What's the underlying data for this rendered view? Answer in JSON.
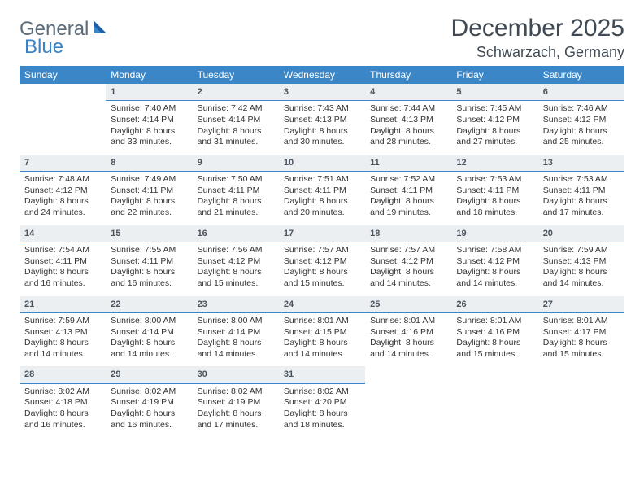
{
  "logo": {
    "text1": "General",
    "text2": "Blue"
  },
  "title": "December 2025",
  "location": "Schwarzach, Germany",
  "colors": {
    "header_bg": "#3b86c6",
    "header_text": "#ffffff",
    "daynum_bg": "#eceff1",
    "daynum_border": "#3b86c6",
    "body_text": "#333333",
    "title_text": "#404a55",
    "logo_gray": "#5a6b7a",
    "logo_blue": "#3b82c4"
  },
  "weekdays": [
    "Sunday",
    "Monday",
    "Tuesday",
    "Wednesday",
    "Thursday",
    "Friday",
    "Saturday"
  ],
  "weeks": [
    [
      null,
      {
        "n": "1",
        "sr": "Sunrise: 7:40 AM",
        "ss": "Sunset: 4:14 PM",
        "dl": "Daylight: 8 hours and 33 minutes."
      },
      {
        "n": "2",
        "sr": "Sunrise: 7:42 AM",
        "ss": "Sunset: 4:14 PM",
        "dl": "Daylight: 8 hours and 31 minutes."
      },
      {
        "n": "3",
        "sr": "Sunrise: 7:43 AM",
        "ss": "Sunset: 4:13 PM",
        "dl": "Daylight: 8 hours and 30 minutes."
      },
      {
        "n": "4",
        "sr": "Sunrise: 7:44 AM",
        "ss": "Sunset: 4:13 PM",
        "dl": "Daylight: 8 hours and 28 minutes."
      },
      {
        "n": "5",
        "sr": "Sunrise: 7:45 AM",
        "ss": "Sunset: 4:12 PM",
        "dl": "Daylight: 8 hours and 27 minutes."
      },
      {
        "n": "6",
        "sr": "Sunrise: 7:46 AM",
        "ss": "Sunset: 4:12 PM",
        "dl": "Daylight: 8 hours and 25 minutes."
      }
    ],
    [
      {
        "n": "7",
        "sr": "Sunrise: 7:48 AM",
        "ss": "Sunset: 4:12 PM",
        "dl": "Daylight: 8 hours and 24 minutes."
      },
      {
        "n": "8",
        "sr": "Sunrise: 7:49 AM",
        "ss": "Sunset: 4:11 PM",
        "dl": "Daylight: 8 hours and 22 minutes."
      },
      {
        "n": "9",
        "sr": "Sunrise: 7:50 AM",
        "ss": "Sunset: 4:11 PM",
        "dl": "Daylight: 8 hours and 21 minutes."
      },
      {
        "n": "10",
        "sr": "Sunrise: 7:51 AM",
        "ss": "Sunset: 4:11 PM",
        "dl": "Daylight: 8 hours and 20 minutes."
      },
      {
        "n": "11",
        "sr": "Sunrise: 7:52 AM",
        "ss": "Sunset: 4:11 PM",
        "dl": "Daylight: 8 hours and 19 minutes."
      },
      {
        "n": "12",
        "sr": "Sunrise: 7:53 AM",
        "ss": "Sunset: 4:11 PM",
        "dl": "Daylight: 8 hours and 18 minutes."
      },
      {
        "n": "13",
        "sr": "Sunrise: 7:53 AM",
        "ss": "Sunset: 4:11 PM",
        "dl": "Daylight: 8 hours and 17 minutes."
      }
    ],
    [
      {
        "n": "14",
        "sr": "Sunrise: 7:54 AM",
        "ss": "Sunset: 4:11 PM",
        "dl": "Daylight: 8 hours and 16 minutes."
      },
      {
        "n": "15",
        "sr": "Sunrise: 7:55 AM",
        "ss": "Sunset: 4:11 PM",
        "dl": "Daylight: 8 hours and 16 minutes."
      },
      {
        "n": "16",
        "sr": "Sunrise: 7:56 AM",
        "ss": "Sunset: 4:12 PM",
        "dl": "Daylight: 8 hours and 15 minutes."
      },
      {
        "n": "17",
        "sr": "Sunrise: 7:57 AM",
        "ss": "Sunset: 4:12 PM",
        "dl": "Daylight: 8 hours and 15 minutes."
      },
      {
        "n": "18",
        "sr": "Sunrise: 7:57 AM",
        "ss": "Sunset: 4:12 PM",
        "dl": "Daylight: 8 hours and 14 minutes."
      },
      {
        "n": "19",
        "sr": "Sunrise: 7:58 AM",
        "ss": "Sunset: 4:12 PM",
        "dl": "Daylight: 8 hours and 14 minutes."
      },
      {
        "n": "20",
        "sr": "Sunrise: 7:59 AM",
        "ss": "Sunset: 4:13 PM",
        "dl": "Daylight: 8 hours and 14 minutes."
      }
    ],
    [
      {
        "n": "21",
        "sr": "Sunrise: 7:59 AM",
        "ss": "Sunset: 4:13 PM",
        "dl": "Daylight: 8 hours and 14 minutes."
      },
      {
        "n": "22",
        "sr": "Sunrise: 8:00 AM",
        "ss": "Sunset: 4:14 PM",
        "dl": "Daylight: 8 hours and 14 minutes."
      },
      {
        "n": "23",
        "sr": "Sunrise: 8:00 AM",
        "ss": "Sunset: 4:14 PM",
        "dl": "Daylight: 8 hours and 14 minutes."
      },
      {
        "n": "24",
        "sr": "Sunrise: 8:01 AM",
        "ss": "Sunset: 4:15 PM",
        "dl": "Daylight: 8 hours and 14 minutes."
      },
      {
        "n": "25",
        "sr": "Sunrise: 8:01 AM",
        "ss": "Sunset: 4:16 PM",
        "dl": "Daylight: 8 hours and 14 minutes."
      },
      {
        "n": "26",
        "sr": "Sunrise: 8:01 AM",
        "ss": "Sunset: 4:16 PM",
        "dl": "Daylight: 8 hours and 15 minutes."
      },
      {
        "n": "27",
        "sr": "Sunrise: 8:01 AM",
        "ss": "Sunset: 4:17 PM",
        "dl": "Daylight: 8 hours and 15 minutes."
      }
    ],
    [
      {
        "n": "28",
        "sr": "Sunrise: 8:02 AM",
        "ss": "Sunset: 4:18 PM",
        "dl": "Daylight: 8 hours and 16 minutes."
      },
      {
        "n": "29",
        "sr": "Sunrise: 8:02 AM",
        "ss": "Sunset: 4:19 PM",
        "dl": "Daylight: 8 hours and 16 minutes."
      },
      {
        "n": "30",
        "sr": "Sunrise: 8:02 AM",
        "ss": "Sunset: 4:19 PM",
        "dl": "Daylight: 8 hours and 17 minutes."
      },
      {
        "n": "31",
        "sr": "Sunrise: 8:02 AM",
        "ss": "Sunset: 4:20 PM",
        "dl": "Daylight: 8 hours and 18 minutes."
      },
      null,
      null,
      null
    ]
  ]
}
